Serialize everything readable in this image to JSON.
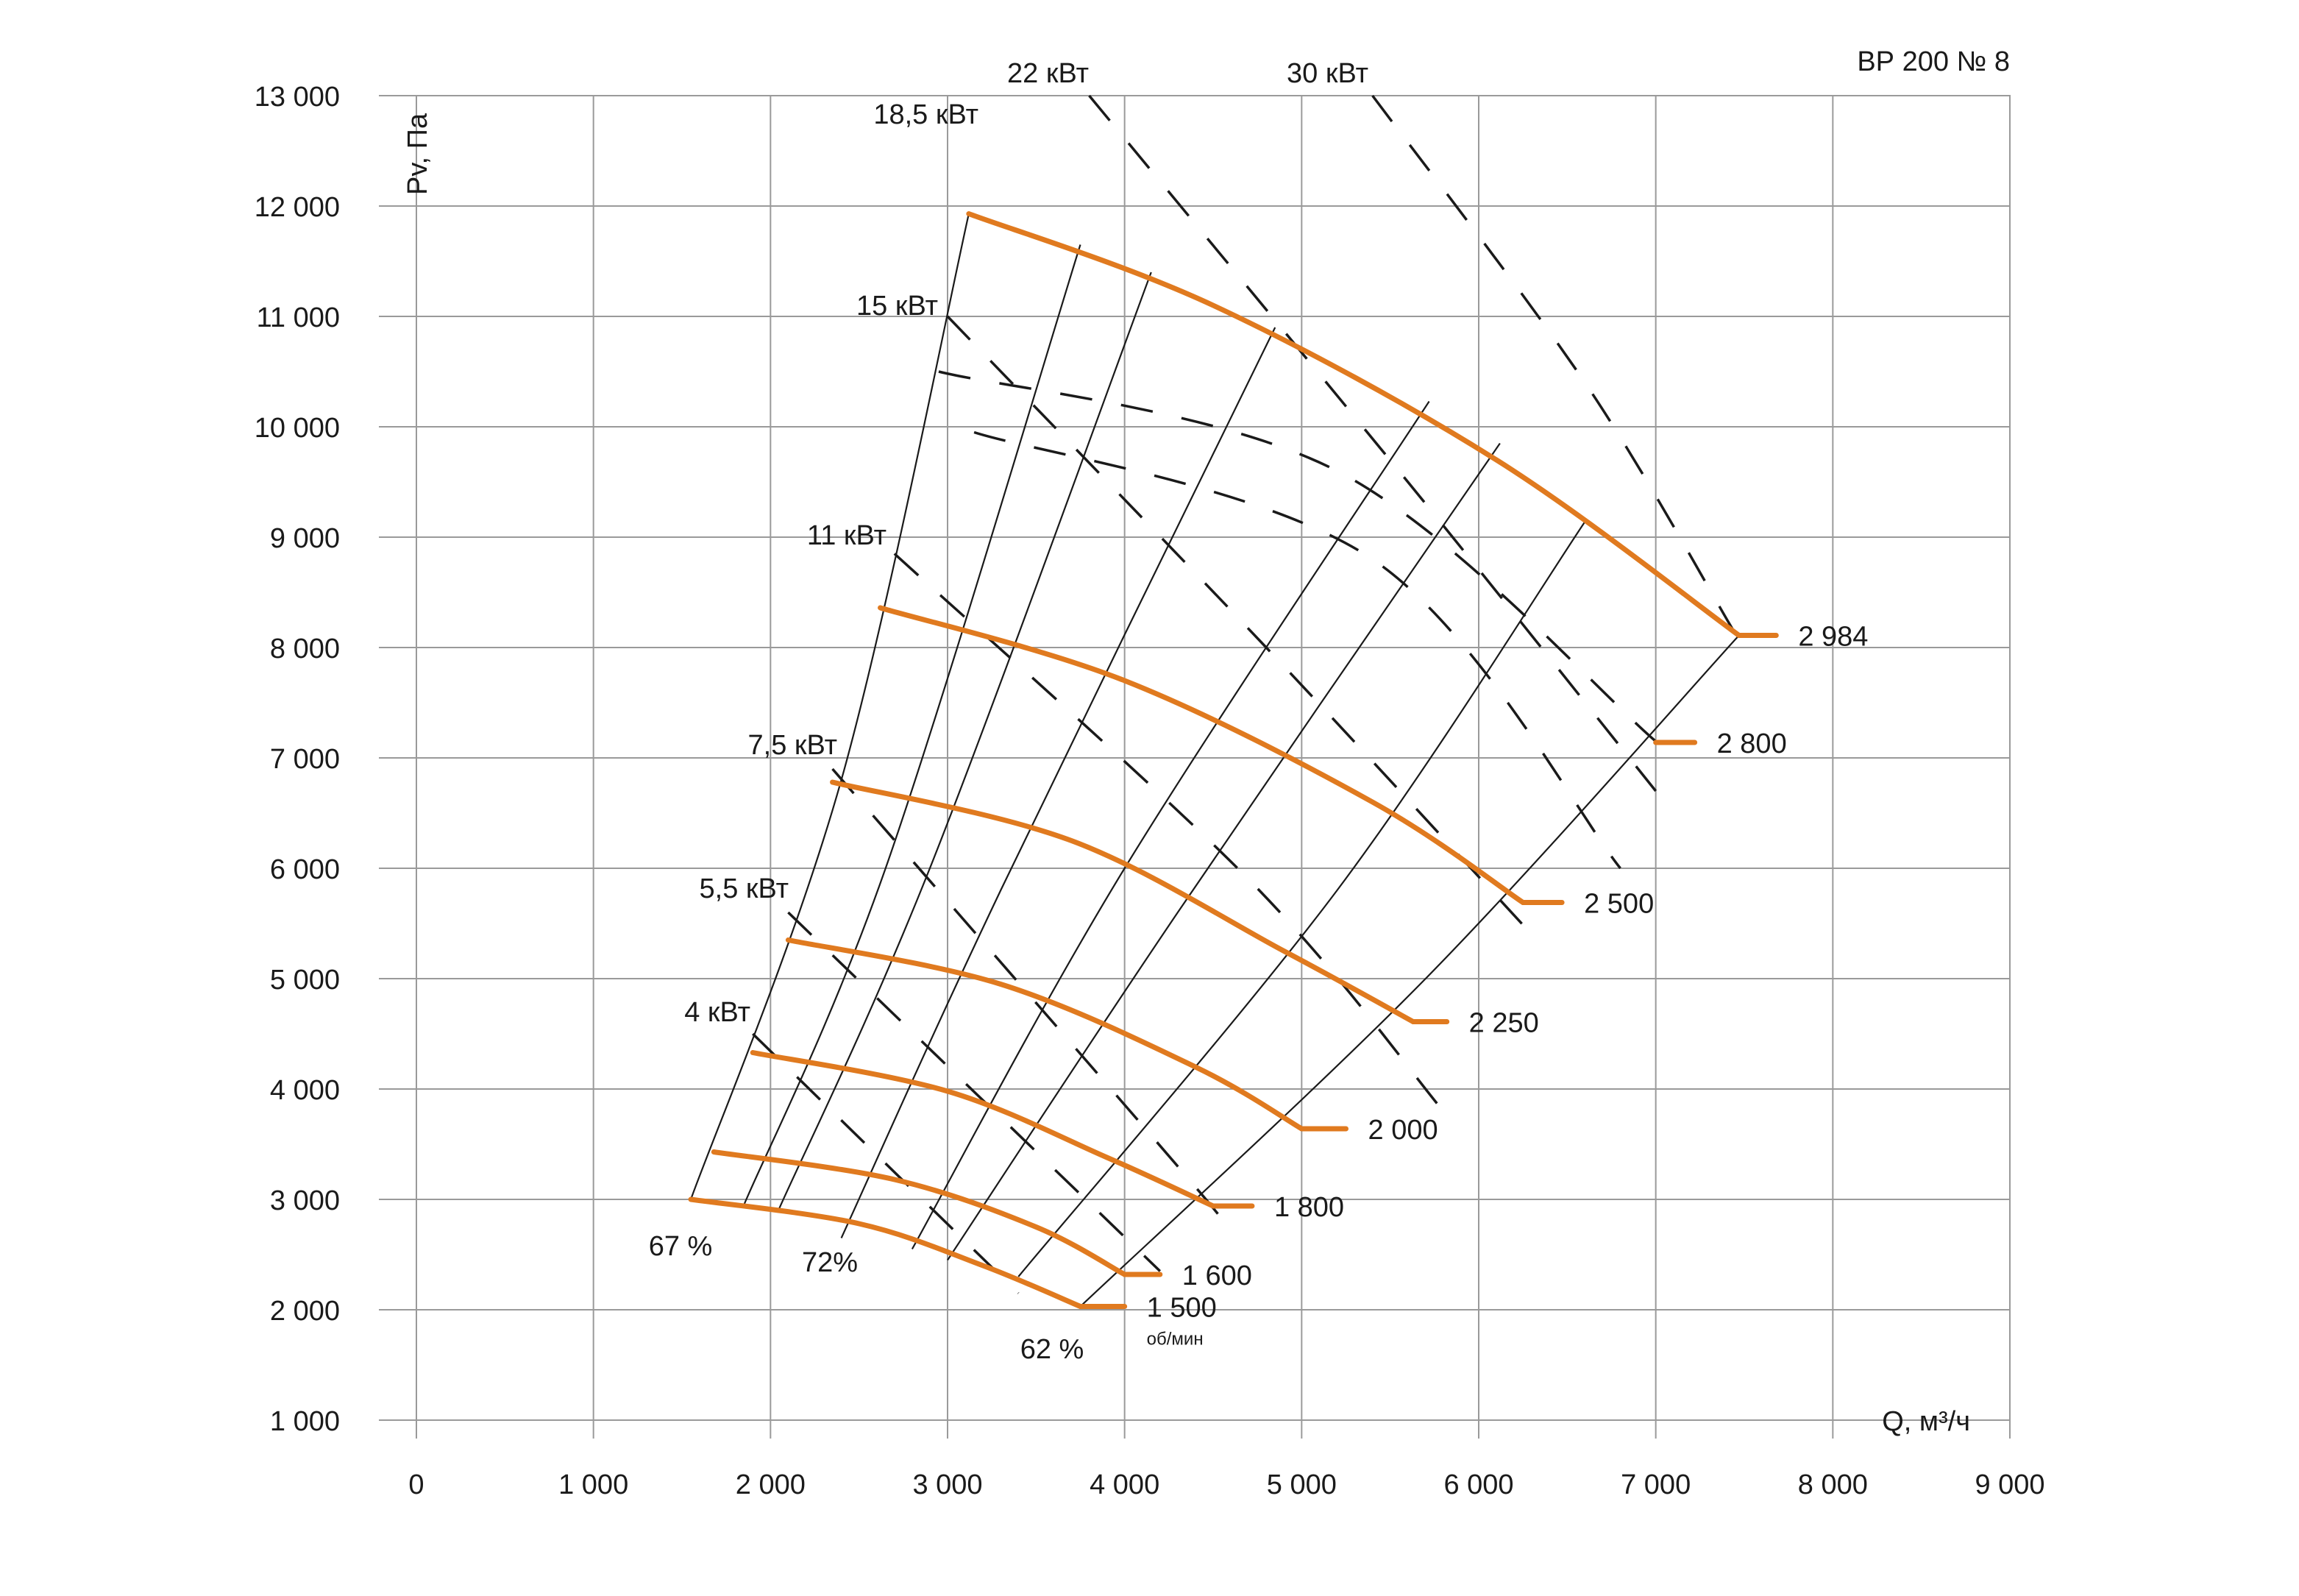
{
  "chart_data": {
    "type": "line",
    "title": "ВР  200 № 8",
    "xlabel": "Q, м³/ч",
    "ylabel": "Pv, Па",
    "xlim": [
      0,
      9000
    ],
    "ylim": [
      1000,
      13000
    ],
    "x_ticks": [
      "0",
      "1 000",
      "2 000",
      "3 000",
      "4 000",
      "5 000",
      "6 000",
      "7 000",
      "8 000",
      "9 000"
    ],
    "y_ticks": [
      "1 000",
      "2 000",
      "3 000",
      "4 000",
      "5 000",
      "6 000",
      "7 000",
      "8 000",
      "9 000",
      "10 000",
      "11 000",
      "12 000",
      "13 000"
    ],
    "grid": true,
    "curve_color": "#e07a1f",
    "line_color": "#1a1a1a",
    "speed_unit": "об/мин",
    "series": [
      {
        "name": "1 500",
        "points": [
          [
            1550,
            3000
          ],
          [
            2500,
            2780
          ],
          [
            3200,
            2400
          ],
          [
            3750,
            2030
          ]
        ],
        "tail_end": 4000
      },
      {
        "name": "1 600",
        "points": [
          [
            1680,
            3430
          ],
          [
            2700,
            3180
          ],
          [
            3500,
            2750
          ],
          [
            4000,
            2320
          ]
        ],
        "tail_end": 4200
      },
      {
        "name": "1 800",
        "points": [
          [
            1900,
            4330
          ],
          [
            3000,
            3980
          ],
          [
            3900,
            3380
          ],
          [
            4500,
            2940
          ]
        ],
        "tail_end": 4720
      },
      {
        "name": "2 000",
        "points": [
          [
            2100,
            5350
          ],
          [
            3300,
            4950
          ],
          [
            4400,
            4200
          ],
          [
            5000,
            3640
          ]
        ],
        "tail_end": 5250
      },
      {
        "name": "2 250",
        "points": [
          [
            2350,
            6780
          ],
          [
            3700,
            6250
          ],
          [
            4900,
            5250
          ],
          [
            5630,
            4610
          ]
        ],
        "tail_end": 5820
      },
      {
        "name": "2 500",
        "points": [
          [
            2620,
            8360
          ],
          [
            4000,
            7700
          ],
          [
            5400,
            6600
          ],
          [
            6250,
            5690
          ]
        ],
        "tail_end": 6470
      },
      {
        "name": "2 800",
        "points": [],
        "tail_start": 7000,
        "tail_end": 7220,
        "level": 7140
      },
      {
        "name": "2 984",
        "points": [
          [
            3120,
            11930
          ],
          [
            4500,
            11100
          ],
          [
            6100,
            9700
          ],
          [
            7470,
            8110
          ]
        ],
        "tail_end": 7680
      }
    ],
    "efficiency_lines": [
      {
        "label": "67 %",
        "points": [
          [
            1550,
            3000
          ],
          [
            2400,
            6800
          ],
          [
            3120,
            11930
          ]
        ]
      },
      {
        "label": "",
        "points": [
          [
            1850,
            2950
          ],
          [
            2650,
            6000
          ],
          [
            3750,
            11650
          ]
        ]
      },
      {
        "label": "",
        "points": [
          [
            2050,
            2920
          ],
          [
            2900,
            6000
          ],
          [
            4150,
            11400
          ]
        ]
      },
      {
        "label": "72%",
        "points": [
          [
            2400,
            2650
          ],
          [
            3300,
            5800
          ],
          [
            4850,
            10900
          ]
        ]
      },
      {
        "label": "",
        "points": [
          [
            2800,
            2550
          ],
          [
            4000,
            6000
          ],
          [
            5720,
            10230
          ]
        ]
      },
      {
        "label": "",
        "points": [
          [
            3000,
            2450
          ],
          [
            4300,
            5600
          ],
          [
            6120,
            9850
          ]
        ]
      },
      {
        "label": "",
        "points": [
          [
            3400,
            2300
          ],
          [
            5200,
            5800
          ],
          [
            6600,
            9140
          ]
        ]
      },
      {
        "label": "62 %",
        "points": [
          [
            3750,
            2030
          ],
          [
            5700,
            5000
          ],
          [
            7470,
            8110
          ]
        ]
      }
    ],
    "power_lines": [
      {
        "label": "4 кВт",
        "points": [
          [
            1900,
            4500
          ],
          [
            3400,
            2150
          ]
        ]
      },
      {
        "label": "5,5 кВт",
        "points": [
          [
            2100,
            5600
          ],
          [
            4200,
            2350
          ]
        ]
      },
      {
        "label": "7,5 кВт",
        "points": [
          [
            2350,
            6900
          ],
          [
            4300,
            3300
          ],
          [
            4600,
            2700
          ]
        ]
      },
      {
        "label": "11 кВт",
        "points": [
          [
            2700,
            8850
          ],
          [
            4700,
            5900
          ],
          [
            5800,
            3800
          ]
        ]
      },
      {
        "label": "15 кВт",
        "points": [
          [
            3000,
            11000
          ],
          [
            4800,
            8000
          ],
          [
            6300,
            5400
          ]
        ]
      },
      {
        "label": "",
        "points": [
          [
            2950,
            10500
          ],
          [
            5200,
            9600
          ],
          [
            7000,
            7150
          ]
        ]
      },
      {
        "label": "18,5 кВт",
        "points": [
          [
            3150,
            9950
          ],
          [
            5400,
            8800
          ],
          [
            6800,
            6000
          ]
        ]
      },
      {
        "label": "22 кВт",
        "points": [
          [
            3800,
            13000
          ],
          [
            5600,
            9500
          ],
          [
            7000,
            6700
          ]
        ]
      },
      {
        "label": "30 кВт",
        "points": [
          [
            5400,
            13000
          ],
          [
            6600,
            10400
          ],
          [
            7440,
            8150
          ]
        ]
      }
    ]
  }
}
